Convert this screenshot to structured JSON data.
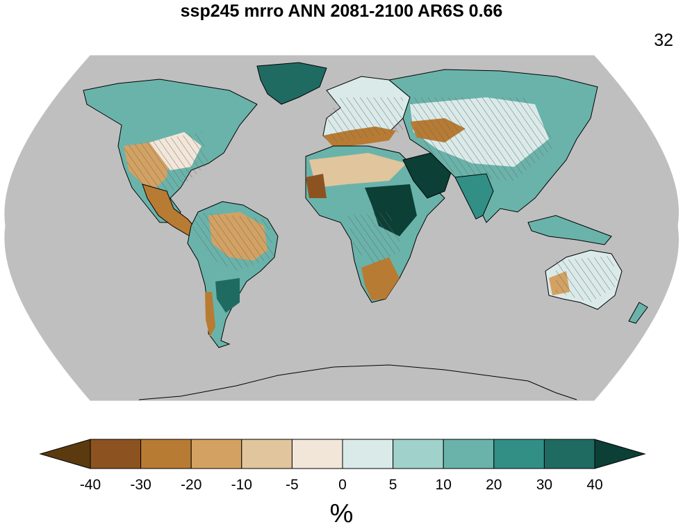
{
  "title": "ssp245 mrro ANN 2081-2100 AR6S 0.66",
  "model_count": "32",
  "units": "%",
  "colors": {
    "ocean": "#bfbfbf",
    "coastline": "#000000",
    "bins": [
      "#5c3a10",
      "#8c5320",
      "#b87b33",
      "#d3a262",
      "#e1c59d",
      "#f2e6d9",
      "#d9eae9",
      "#a0d1cb",
      "#6ab3aa",
      "#318f86",
      "#1f6b62",
      "#0c3f36"
    ]
  },
  "colorbar": {
    "ticks": [
      "-40",
      "-30",
      "-20",
      "-10",
      "-5",
      "0",
      "5",
      "10",
      "20",
      "30",
      "40"
    ]
  },
  "map": {
    "projection": "robinson",
    "field": "mrro annual runoff change (%)",
    "hatching": "low model agreement"
  }
}
